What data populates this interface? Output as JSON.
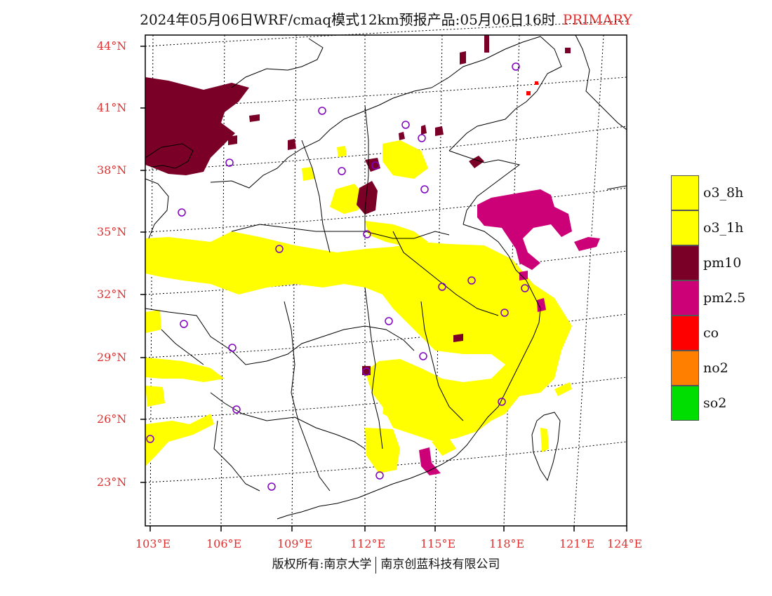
{
  "title": {
    "main": "2024年05月06日WRF/cmaq模式12km预报产品:05月06日16时",
    "tag": "PRIMARY"
  },
  "axes": {
    "lat_labels": [
      "44°N",
      "41°N",
      "38°N",
      "35°N",
      "32°N",
      "29°N",
      "26°N",
      "23°N"
    ],
    "lon_labels": [
      "103°E",
      "106°E",
      "109°E",
      "112°E",
      "115°E",
      "118°E",
      "121°E",
      "124°E"
    ]
  },
  "legend": [
    {
      "label": "o3_8h",
      "color": "#ffff00"
    },
    {
      "label": "o3_1h",
      "color": "#ffff00"
    },
    {
      "label": "pm10",
      "color": "#7a0028"
    },
    {
      "label": "pm2.5",
      "color": "#cc0077"
    },
    {
      "label": "co",
      "color": "#ff0000"
    },
    {
      "label": "no2",
      "color": "#ff8000"
    },
    {
      "label": "so2",
      "color": "#00dd00"
    }
  ],
  "colors": {
    "o3": "#ffff00",
    "pm10": "#7a0028",
    "pm25": "#cc0077",
    "co": "#ff0000",
    "station": "#8000c0",
    "axis_label": "#e03030"
  },
  "footer": {
    "left": "版权所有:南京大学",
    "right": "南京创蓝科技有限公司"
  }
}
